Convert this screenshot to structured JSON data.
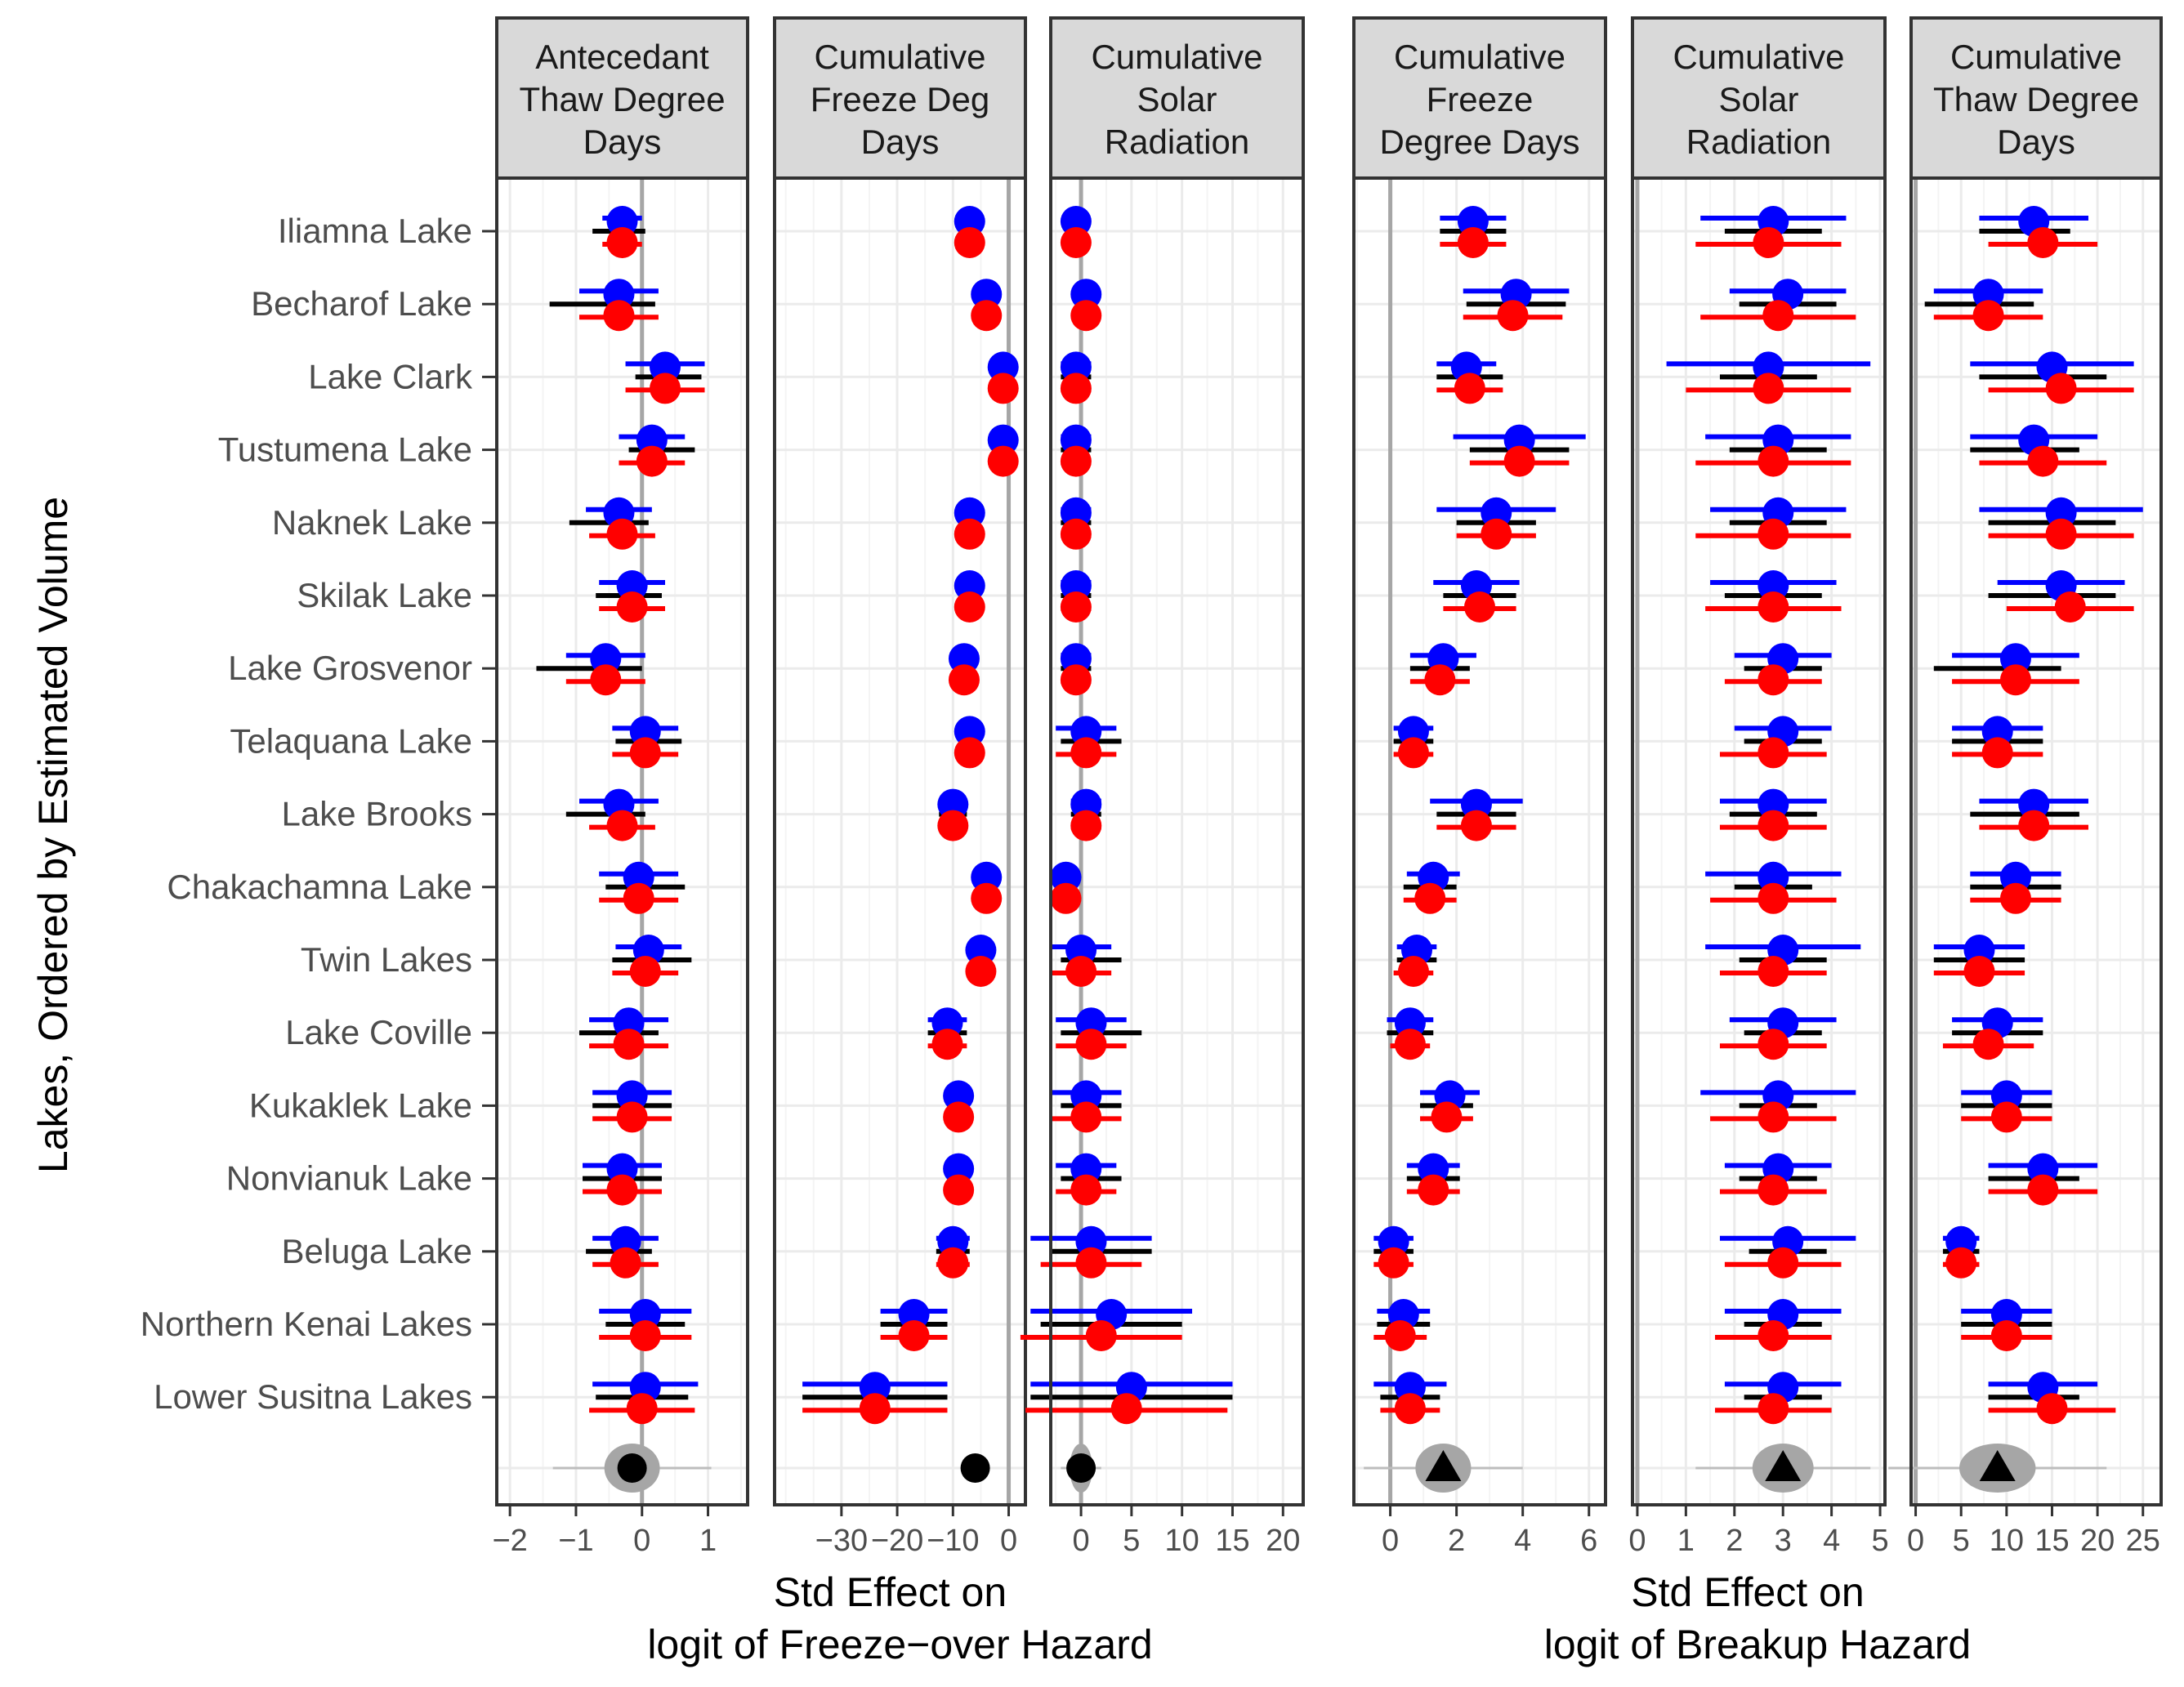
{
  "chart_data": {
    "type": "forest",
    "ylabel": "Lakes, Ordered by Estimated Volume",
    "lakes": [
      "Iliamna Lake",
      "Becharof Lake",
      "Lake Clark",
      "Tustumena Lake",
      "Naknek Lake",
      "Skilak Lake",
      "Lake Grosvenor",
      "Telaquana Lake",
      "Lake Brooks",
      "Chakachamna Lake",
      "Twin Lakes",
      "Lake Coville",
      "Kukaklek Lake",
      "Nonvianuk Lake",
      "Beluga Lake",
      "Northern Kenai Lakes",
      "Lower Susitna Lakes"
    ],
    "series_colors": {
      "blue": "#0000ff",
      "black": "#000000",
      "red": "#ff0000"
    },
    "groups": [
      {
        "xlabel_line1": "Std Effect on",
        "xlabel_line2": "logit of Freeze−over Hazard"
      },
      {
        "xlabel_line1": "Std Effect on",
        "xlabel_line2": "logit of Breakup Hazard"
      }
    ],
    "panels": [
      {
        "group": 0,
        "title": [
          "Antecedant",
          "Thaw Degree",
          "Days"
        ],
        "xlim": [
          -2.2,
          1.6
        ],
        "ticks": [
          -2,
          -1,
          0,
          1
        ],
        "tick_labels": [
          "−2",
          "−1",
          "0",
          "1"
        ],
        "refline": 0,
        "pooled": {
          "x": -0.15,
          "shape": "circle",
          "spread": 0.6
        },
        "estimates": [
          [
            -0.3,
            -0.35,
            -0.3
          ],
          [
            -0.35,
            -0.6,
            -0.35
          ],
          [
            0.35,
            0.4,
            0.35
          ],
          [
            0.15,
            0.3,
            0.15
          ],
          [
            -0.35,
            -0.5,
            -0.3
          ],
          [
            -0.15,
            -0.2,
            -0.15
          ],
          [
            -0.55,
            -0.8,
            -0.55
          ],
          [
            0.05,
            0.1,
            0.05
          ],
          [
            -0.35,
            -0.55,
            -0.3
          ],
          [
            -0.05,
            0.05,
            -0.05
          ],
          [
            0.1,
            0.15,
            0.05
          ],
          [
            -0.2,
            -0.35,
            -0.2
          ],
          [
            -0.15,
            -0.15,
            -0.15
          ],
          [
            -0.3,
            -0.3,
            -0.3
          ],
          [
            -0.25,
            -0.35,
            -0.25
          ],
          [
            0.05,
            0.05,
            0.05
          ],
          [
            0.05,
            0.0,
            0.0
          ]
        ],
        "halfwidths": [
          [
            0.3,
            0.4,
            0.3
          ],
          [
            0.6,
            0.8,
            0.6
          ],
          [
            0.6,
            0.5,
            0.6
          ],
          [
            0.5,
            0.5,
            0.5
          ],
          [
            0.5,
            0.6,
            0.5
          ],
          [
            0.5,
            0.5,
            0.5
          ],
          [
            0.6,
            0.8,
            0.6
          ],
          [
            0.5,
            0.5,
            0.5
          ],
          [
            0.6,
            0.6,
            0.5
          ],
          [
            0.6,
            0.6,
            0.6
          ],
          [
            0.5,
            0.6,
            0.5
          ],
          [
            0.6,
            0.6,
            0.6
          ],
          [
            0.6,
            0.6,
            0.6
          ],
          [
            0.6,
            0.6,
            0.6
          ],
          [
            0.5,
            0.5,
            0.5
          ],
          [
            0.7,
            0.6,
            0.7
          ],
          [
            0.8,
            0.7,
            0.8
          ]
        ]
      },
      {
        "group": 0,
        "title": [
          "Cumulative",
          "Freeze Deg",
          "Days"
        ],
        "xlim": [
          -42,
          3
        ],
        "ticks": [
          -30,
          -20,
          -10,
          0
        ],
        "tick_labels": [
          "−30",
          "−20",
          "−10",
          "0"
        ],
        "refline": 0,
        "pooled": {
          "x": -6,
          "shape": "circle",
          "spread": 0
        },
        "estimates": [
          [
            -7,
            -7,
            -7
          ],
          [
            -4,
            -4,
            -4
          ],
          [
            -1,
            -1,
            -1
          ],
          [
            -1,
            -1,
            -1
          ],
          [
            -7,
            -7,
            -7
          ],
          [
            -7,
            -7,
            -7
          ],
          [
            -8,
            -8,
            -8
          ],
          [
            -7,
            -7,
            -7
          ],
          [
            -10,
            -10,
            -10
          ],
          [
            -4,
            -4,
            -4
          ],
          [
            -5,
            -5,
            -5
          ],
          [
            -11,
            -11,
            -11
          ],
          [
            -9,
            -9,
            -9
          ],
          [
            -9,
            -9,
            -9
          ],
          [
            -10,
            -10,
            -10
          ],
          [
            -17,
            -17,
            -17
          ],
          [
            -24,
            -24,
            -24
          ]
        ],
        "halfwidths": [
          [
            1.5,
            1.5,
            1.5
          ],
          [
            1.5,
            1.5,
            1.5
          ],
          [
            1.5,
            1.5,
            1.5
          ],
          [
            1.5,
            1.5,
            1.5
          ],
          [
            1.5,
            1.5,
            1.5
          ],
          [
            1.5,
            1.5,
            1.5
          ],
          [
            2,
            2,
            2
          ],
          [
            1.5,
            1.5,
            1.5
          ],
          [
            2.5,
            2.5,
            2.5
          ],
          [
            1.5,
            1.5,
            1.5
          ],
          [
            1.5,
            1.5,
            1.5
          ],
          [
            3.5,
            3.5,
            3.5
          ],
          [
            2,
            2,
            2
          ],
          [
            2,
            2,
            2
          ],
          [
            3,
            3,
            3
          ],
          [
            6,
            6,
            6
          ],
          [
            13,
            13,
            13
          ]
        ]
      },
      {
        "group": 0,
        "title": [
          "Cumulative",
          "Solar",
          "Radiation"
        ],
        "xlim": [
          -3,
          22
        ],
        "ticks": [
          0,
          5,
          10,
          15,
          20
        ],
        "tick_labels": [
          "0",
          "5",
          "10",
          "15",
          "20"
        ],
        "refline": 0,
        "pooled": {
          "x": 0,
          "shape": "circle",
          "spread": 1
        },
        "estimates": [
          [
            -0.5,
            -0.5,
            -0.5
          ],
          [
            0.5,
            0.5,
            0.5
          ],
          [
            -0.5,
            -0.5,
            -0.5
          ],
          [
            -0.5,
            -0.5,
            -0.5
          ],
          [
            -0.5,
            -0.5,
            -0.5
          ],
          [
            -0.5,
            -0.5,
            -0.5
          ],
          [
            -0.5,
            -0.5,
            -0.5
          ],
          [
            0.5,
            1,
            0.5
          ],
          [
            0.5,
            0.5,
            0.5
          ],
          [
            -1.5,
            -1.5,
            -1.5
          ],
          [
            0,
            1,
            0
          ],
          [
            1,
            2,
            1
          ],
          [
            0.5,
            1,
            0.5
          ],
          [
            0.5,
            1,
            0.5
          ],
          [
            1,
            2,
            1
          ],
          [
            3,
            3,
            2
          ],
          [
            5,
            5,
            4.5
          ]
        ],
        "halfwidths": [
          [
            1,
            1,
            1
          ],
          [
            1,
            1,
            1
          ],
          [
            1.5,
            1.5,
            1.5
          ],
          [
            1.5,
            1.5,
            1.5
          ],
          [
            1.5,
            1.5,
            1.5
          ],
          [
            1.5,
            1.5,
            1.5
          ],
          [
            1.5,
            1.5,
            1.5
          ],
          [
            3,
            3,
            3
          ],
          [
            1.5,
            1.5,
            1.5
          ],
          [
            1,
            1,
            1
          ],
          [
            3,
            3,
            3
          ],
          [
            3.5,
            4,
            3.5
          ],
          [
            3.5,
            3,
            3.5
          ],
          [
            3,
            3,
            3
          ],
          [
            6,
            5,
            5
          ],
          [
            8,
            7,
            8
          ],
          [
            10,
            10,
            10
          ]
        ]
      },
      {
        "group": 1,
        "title": [
          "Cumulative",
          "Freeze",
          "Degree Days"
        ],
        "xlim": [
          -1.1,
          6.5
        ],
        "ticks": [
          0,
          2,
          4,
          6
        ],
        "tick_labels": [
          "0",
          "2",
          "4",
          "6"
        ],
        "refline": 0,
        "pooled": {
          "x": 1.6,
          "shape": "triangle",
          "spread": 1.2
        },
        "estimates": [
          [
            2.5,
            2.5,
            2.5
          ],
          [
            3.8,
            3.8,
            3.7
          ],
          [
            2.3,
            2.4,
            2.4
          ],
          [
            3.9,
            3.9,
            3.9
          ],
          [
            3.2,
            3.2,
            3.2
          ],
          [
            2.6,
            2.7,
            2.7
          ],
          [
            1.6,
            1.5,
            1.5
          ],
          [
            0.7,
            0.7,
            0.7
          ],
          [
            2.6,
            2.6,
            2.6
          ],
          [
            1.3,
            1.2,
            1.2
          ],
          [
            0.8,
            0.8,
            0.7
          ],
          [
            0.6,
            0.6,
            0.6
          ],
          [
            1.8,
            1.7,
            1.7
          ],
          [
            1.3,
            1.3,
            1.3
          ],
          [
            0.1,
            0.1,
            0.1
          ],
          [
            0.4,
            0.4,
            0.3
          ],
          [
            0.6,
            0.6,
            0.6
          ]
        ],
        "halfwidths": [
          [
            1,
            1,
            1
          ],
          [
            1.6,
            1.5,
            1.5
          ],
          [
            0.9,
            1,
            1
          ],
          [
            2,
            1.5,
            1.5
          ],
          [
            1.8,
            1.2,
            1.2
          ],
          [
            1.3,
            1.1,
            1.1
          ],
          [
            1,
            0.9,
            0.9
          ],
          [
            0.6,
            0.6,
            0.6
          ],
          [
            1.4,
            1.2,
            1.2
          ],
          [
            0.8,
            0.8,
            0.8
          ],
          [
            0.6,
            0.6,
            0.6
          ],
          [
            0.7,
            0.7,
            0.6
          ],
          [
            0.9,
            0.8,
            0.8
          ],
          [
            0.8,
            0.8,
            0.8
          ],
          [
            0.6,
            0.6,
            0.6
          ],
          [
            0.8,
            0.8,
            0.8
          ],
          [
            1.1,
            0.9,
            0.9
          ]
        ]
      },
      {
        "group": 1,
        "title": [
          "Cumulative",
          "Solar",
          "Radiation"
        ],
        "xlim": [
          -0.1,
          5.1
        ],
        "ticks": [
          0,
          1,
          2,
          3,
          4,
          5
        ],
        "tick_labels": [
          "0",
          "1",
          "2",
          "3",
          "4",
          "5"
        ],
        "refline": 0,
        "pooled": {
          "x": 3.0,
          "shape": "triangle",
          "spread": 0.9
        },
        "estimates": [
          [
            2.8,
            2.8,
            2.7
          ],
          [
            3.1,
            3.1,
            2.9
          ],
          [
            2.7,
            2.7,
            2.7
          ],
          [
            2.9,
            2.9,
            2.8
          ],
          [
            2.9,
            2.9,
            2.8
          ],
          [
            2.8,
            2.8,
            2.8
          ],
          [
            3.0,
            3.0,
            2.8
          ],
          [
            3.0,
            3.0,
            2.8
          ],
          [
            2.8,
            2.8,
            2.8
          ],
          [
            2.8,
            2.8,
            2.8
          ],
          [
            3.0,
            3.0,
            2.8
          ],
          [
            3.0,
            3.0,
            2.8
          ],
          [
            2.9,
            2.9,
            2.8
          ],
          [
            2.9,
            2.9,
            2.8
          ],
          [
            3.1,
            3.1,
            3.0
          ],
          [
            3.0,
            3.0,
            2.8
          ],
          [
            3.0,
            3.0,
            2.8
          ]
        ],
        "halfwidths": [
          [
            1.5,
            1.0,
            1.5
          ],
          [
            1.2,
            1.0,
            1.6
          ],
          [
            2.1,
            1.0,
            1.7
          ],
          [
            1.5,
            1.0,
            1.6
          ],
          [
            1.4,
            1.0,
            1.6
          ],
          [
            1.3,
            1.0,
            1.4
          ],
          [
            1.0,
            0.8,
            1.0
          ],
          [
            1.0,
            0.8,
            1.1
          ],
          [
            1.1,
            0.9,
            1.1
          ],
          [
            1.4,
            0.8,
            1.3
          ],
          [
            1.6,
            0.9,
            1.1
          ],
          [
            1.1,
            0.8,
            1.1
          ],
          [
            1.6,
            0.8,
            1.3
          ],
          [
            1.1,
            0.8,
            1.1
          ],
          [
            1.4,
            0.8,
            1.2
          ],
          [
            1.2,
            0.8,
            1.2
          ],
          [
            1.2,
            0.8,
            1.2
          ]
        ]
      },
      {
        "group": 1,
        "title": [
          "Cumulative",
          "Thaw Degree",
          "Days"
        ],
        "xlim": [
          -0.5,
          27
        ],
        "ticks": [
          0,
          5,
          10,
          15,
          20,
          25
        ],
        "tick_labels": [
          "0",
          "5",
          "10",
          "15",
          "20",
          "25"
        ],
        "refline": 0,
        "pooled": {
          "x": 9,
          "shape": "triangle",
          "spread": 6
        },
        "estimates": [
          [
            13,
            12,
            14
          ],
          [
            8,
            7,
            8
          ],
          [
            15,
            14,
            16
          ],
          [
            13,
            12,
            14
          ],
          [
            16,
            15,
            16
          ],
          [
            16,
            15,
            17
          ],
          [
            11,
            9,
            11
          ],
          [
            9,
            9,
            9
          ],
          [
            13,
            12,
            13
          ],
          [
            11,
            11,
            11
          ],
          [
            7,
            7,
            7
          ],
          [
            9,
            9,
            8
          ],
          [
            10,
            10,
            10
          ],
          [
            14,
            13,
            14
          ],
          [
            5,
            5,
            5
          ],
          [
            10,
            10,
            10
          ],
          [
            14,
            13,
            15
          ]
        ],
        "halfwidths": [
          [
            6,
            5,
            6
          ],
          [
            6,
            6,
            6
          ],
          [
            9,
            7,
            8
          ],
          [
            7,
            6,
            7
          ],
          [
            9,
            7,
            8
          ],
          [
            7,
            7,
            7
          ],
          [
            7,
            7,
            7
          ],
          [
            5,
            5,
            5
          ],
          [
            6,
            6,
            6
          ],
          [
            5,
            5,
            5
          ],
          [
            5,
            5,
            5
          ],
          [
            5,
            5,
            5
          ],
          [
            5,
            5,
            5
          ],
          [
            6,
            5,
            6
          ],
          [
            2,
            2,
            2
          ],
          [
            5,
            5,
            5
          ],
          [
            6,
            5,
            7
          ]
        ]
      }
    ]
  }
}
